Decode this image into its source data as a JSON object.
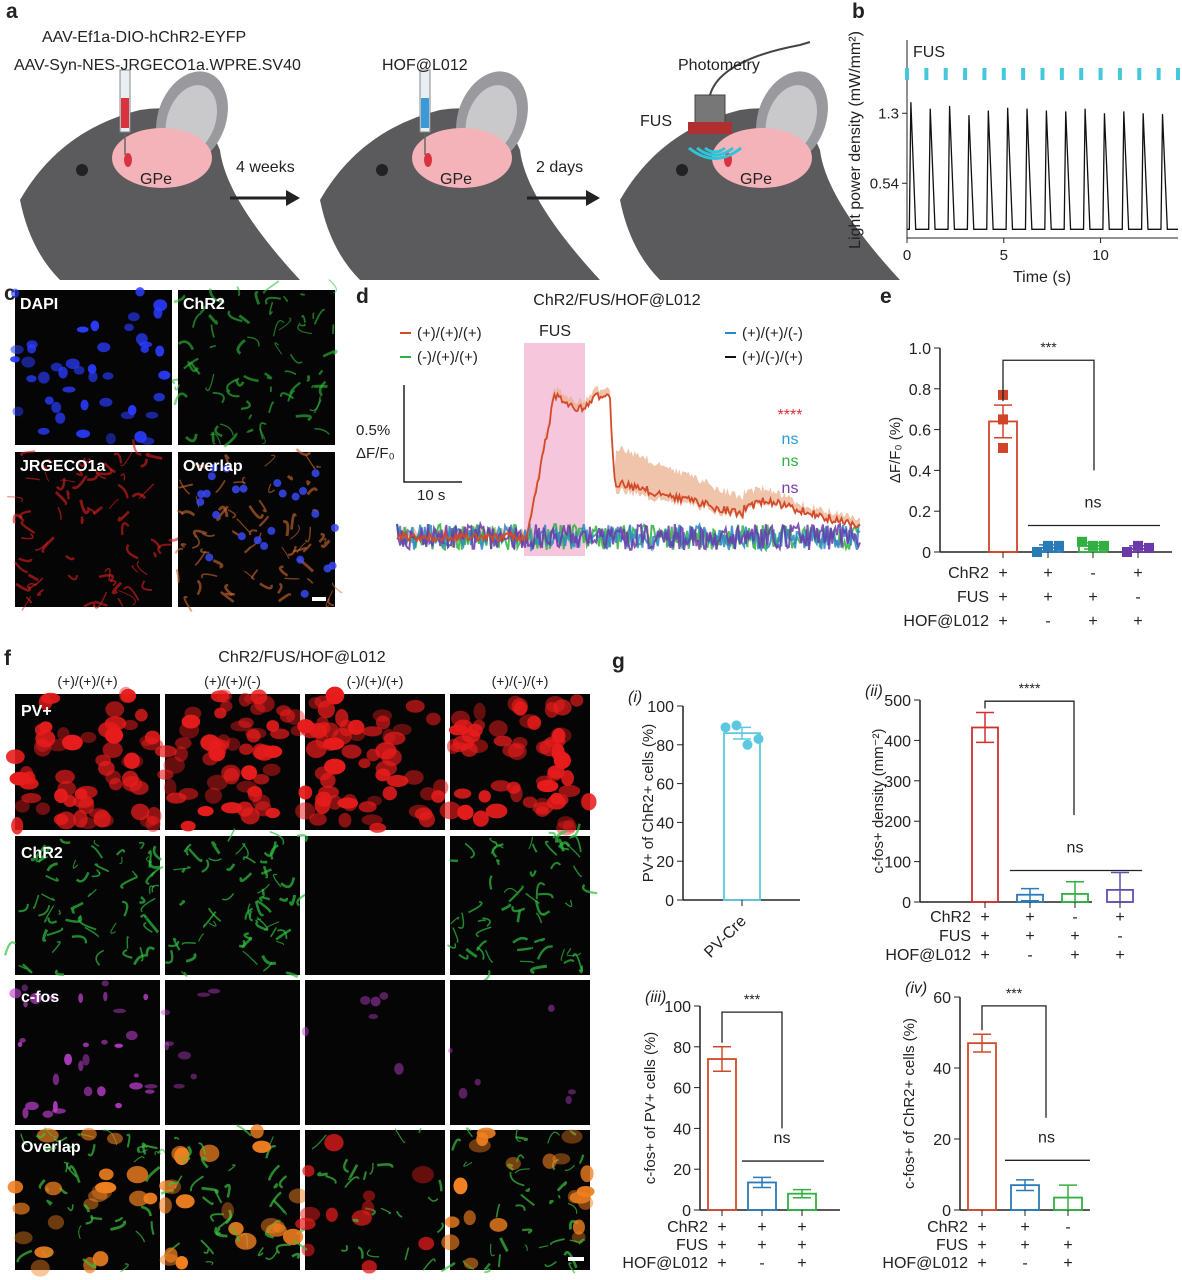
{
  "panel_labels": {
    "a": "a",
    "b": "b",
    "c": "c",
    "d": "d",
    "e": "e",
    "f": "f",
    "g": "g"
  },
  "panel_a": {
    "virus_1": "AAV-Ef1a-DIO-hChR2-EYFP",
    "virus_2": "AAV-Syn-NES-JRGECO1a.WPRE.SV40",
    "injection_2": "HOF@L012",
    "photometry": "Photometry",
    "fus": "FUS",
    "region": "GPe",
    "interval_1": "4 weeks",
    "interval_2": "2 days",
    "colors": {
      "mouse": "#5b5b5e",
      "brain": "#f4b3b8",
      "injection_1": "#d9333f",
      "fus_waves": "#2fc4d8"
    }
  },
  "panel_c": {
    "images": [
      {
        "label": "DAPI",
        "color": "#2a3cff"
      },
      {
        "label": "ChR2",
        "color": "#2fbf3a"
      },
      {
        "label": "JRGECO1a",
        "color": "#e02020"
      },
      {
        "label": "Overlap",
        "color": "#d06a30"
      }
    ]
  },
  "panel_f": {
    "title": "ChR2/FUS/HOF@L012",
    "columns": [
      "(+)/(+)/(+)",
      "(+)/(+)/(-)",
      "(-)/(+)/(+)",
      "(+)/(-)/(+)"
    ],
    "rows": [
      {
        "label": "PV+",
        "color": "#e81c1c",
        "intensity": [
          1,
          1,
          1,
          1
        ]
      },
      {
        "label": "ChR2",
        "color": "#2ec040",
        "intensity": [
          1,
          1,
          0.02,
          1
        ]
      },
      {
        "label": "c-fos",
        "color": "#c040d0",
        "intensity": [
          0.8,
          0.2,
          0.15,
          0.15
        ]
      },
      {
        "label": "Overlap",
        "color": "#d07020",
        "intensity": [
          1,
          1,
          0.6,
          1
        ]
      }
    ]
  },
  "chart_data": [
    {
      "id": "b",
      "type": "line",
      "xlabel": "Time (s)",
      "ylabel": "Light power density (mW/mm²)",
      "xticks": [
        0,
        5,
        10
      ],
      "yticks": [
        0.54,
        1.3
      ],
      "xlim": [
        0,
        14
      ],
      "ylim": [
        0,
        2.1
      ],
      "annotation": "FUS",
      "fus_pulse_times": [
        0,
        1,
        2,
        3,
        4,
        5,
        6,
        7,
        8,
        9,
        10,
        11,
        12,
        13,
        14
      ],
      "peak_times": [
        0.2,
        1.2,
        2.2,
        3.2,
        4.2,
        5.2,
        6.2,
        7.2,
        8.2,
        9.2,
        10.2,
        11.2,
        12.2,
        13.2
      ],
      "peak_values": [
        1.42,
        1.35,
        1.38,
        1.28,
        1.33,
        1.36,
        1.35,
        1.33,
        1.32,
        1.35,
        1.3,
        1.32,
        1.3,
        1.29
      ],
      "baseline": 0.04,
      "colors": {
        "trace": "#111111",
        "pulse": "#45c8dc"
      }
    },
    {
      "id": "d",
      "type": "line",
      "title": "ChR2/FUS/HOF@L012",
      "fus_label": "FUS",
      "scale_bar": {
        "y_label": "0.5%",
        "y_unit": "ΔF/F₀",
        "x_label": "10 s"
      },
      "series": [
        {
          "name": "(+)/(+)/(+)",
          "color": "#d24a2a",
          "significance": "****",
          "sig_color": "#e0303a"
        },
        {
          "name": "(-)/(+)/(+)",
          "color": "#30b040",
          "significance": "ns",
          "sig_color": "#30b040"
        },
        {
          "name": "(+)/(+)/(-)",
          "color": "#2a86c8",
          "significance": "ns",
          "sig_color": "#2a9ad8"
        },
        {
          "name": "(+)/(-)/(+)",
          "color": "#6a3aa8",
          "legend_color": "#111111",
          "significance": "ns",
          "sig_color": "#7a3aa8"
        }
      ],
      "fus_color": "#f6c6dc",
      "sem_color": "#eab08e"
    },
    {
      "id": "e",
      "type": "bar",
      "ylabel": "ΔF/F₀ (%)",
      "ylim": [
        0,
        1.0
      ],
      "yticks": [
        "0",
        "0.2",
        "0.4",
        "0.6",
        "0.8",
        "1.0"
      ],
      "conditions": {
        "labels": [
          "ChR2",
          "FUS",
          "HOF@L012"
        ],
        "values": [
          [
            "+",
            "+",
            "-",
            "+"
          ],
          [
            "+",
            "+",
            "+",
            "-"
          ],
          [
            "+",
            "-",
            "+",
            "+"
          ]
        ]
      },
      "values": [
        0.64,
        0.02,
        0.03,
        0.015
      ],
      "errors": [
        0.08,
        0.015,
        0.015,
        0.015
      ],
      "points": [
        [
          0.77,
          0.65,
          0.51
        ],
        [
          0.0,
          0.03,
          0.03
        ],
        [
          0.05,
          0.03,
          0.03
        ],
        [
          0.0,
          0.03,
          0.02
        ]
      ],
      "colors": [
        "#d0452a",
        "#2a7ab8",
        "#30b040",
        "#6a3aa8"
      ],
      "significance": [
        {
          "label": "***"
        },
        {
          "label": "ns"
        }
      ]
    },
    {
      "id": "g-i",
      "sublabel": "(i)",
      "type": "bar",
      "ylabel": "PV+  of ChR2+ cells (%)",
      "ylim": [
        0,
        100
      ],
      "yticks": [
        "0",
        "20",
        "40",
        "60",
        "80",
        "100"
      ],
      "categories": [
        "PV-Cre"
      ],
      "values": [
        86
      ],
      "errors": [
        3
      ],
      "points": [
        [
          89,
          90,
          80,
          83
        ]
      ],
      "colors": [
        "#5cc8e0"
      ]
    },
    {
      "id": "g-ii",
      "sublabel": "(ii)",
      "type": "bar",
      "ylabel": "c-fos+  density (mm⁻²)",
      "ylim": [
        0,
        500
      ],
      "yticks": [
        "0",
        "100",
        "200",
        "300",
        "400",
        "500"
      ],
      "conditions": {
        "labels": [
          "ChR2",
          "FUS",
          "HOF@L012"
        ],
        "values": [
          [
            "+",
            "+",
            "-",
            "+"
          ],
          [
            "+",
            "+",
            "+",
            "-"
          ],
          [
            "+",
            "-",
            "+",
            "+"
          ]
        ]
      },
      "values": [
        432,
        18,
        20,
        30
      ],
      "errors": [
        37,
        15,
        30,
        43
      ],
      "colors": [
        "#d03030",
        "#2a7ab8",
        "#30b040",
        "#5a50b0"
      ],
      "significance": [
        {
          "label": "****"
        },
        {
          "label": "ns"
        }
      ]
    },
    {
      "id": "g-iii",
      "sublabel": "(iii)",
      "type": "bar",
      "ylabel": "c-fos+  of PV+ cells (%)",
      "ylim": [
        0,
        100
      ],
      "yticks": [
        "0",
        "20",
        "40",
        "60",
        "80",
        "100"
      ],
      "conditions": {
        "labels": [
          "ChR2",
          "FUS",
          "HOF@L012"
        ],
        "values": [
          [
            "+",
            "+",
            "+"
          ],
          [
            "+",
            "+",
            "+"
          ],
          [
            "+",
            "-",
            "+"
          ]
        ]
      },
      "values": [
        74,
        13.5,
        8
      ],
      "errors": [
        6,
        2.5,
        2
      ],
      "colors": [
        "#d04a2a",
        "#2a7ab8",
        "#30b040"
      ],
      "significance": [
        {
          "label": "***"
        },
        {
          "label": "ns"
        }
      ]
    },
    {
      "id": "g-iv",
      "sublabel": "(iv)",
      "type": "bar",
      "ylabel": "c-fos+  of ChR2+ cells (%)",
      "ylim": [
        0,
        60
      ],
      "yticks": [
        "0",
        "20",
        "40",
        "60"
      ],
      "conditions": {
        "labels": [
          "ChR2",
          "FUS",
          "HOF@L012"
        ],
        "values": [
          [
            "+",
            "+",
            "-"
          ],
          [
            "+",
            "+",
            "+"
          ],
          [
            "+",
            "-",
            "+"
          ]
        ]
      },
      "values": [
        47,
        7,
        3.5
      ],
      "errors": [
        2.5,
        1.5,
        3.5
      ],
      "colors": [
        "#d04a2a",
        "#2a7ab8",
        "#30b040"
      ],
      "significance": [
        {
          "label": "***"
        },
        {
          "label": "ns"
        }
      ]
    }
  ]
}
